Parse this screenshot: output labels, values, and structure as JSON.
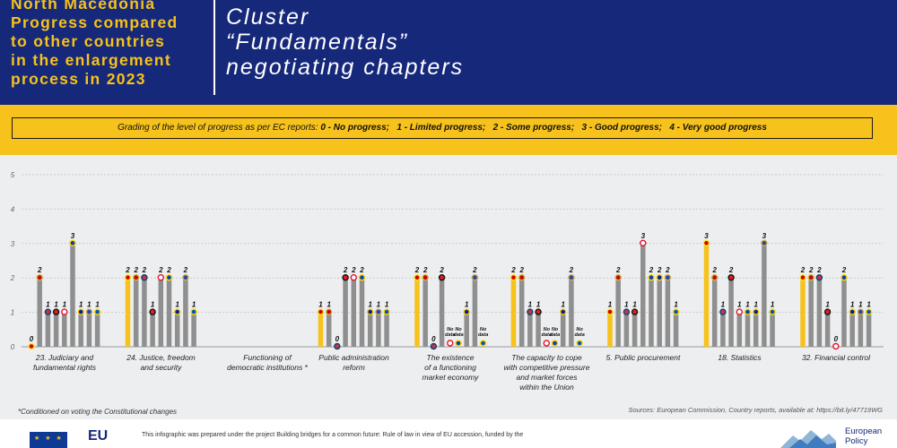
{
  "header": {
    "left_lines": [
      "North Macedonia",
      "Progress compared",
      "to other countries",
      "in the enlargement",
      "process in 2023"
    ],
    "right_lines": [
      "Cluster",
      "“Fundamentals”",
      "negotiating chapters"
    ]
  },
  "grading": {
    "intro": "Grading of the level of progress as per EC reports: ",
    "items": [
      "0 - No progress;",
      "1 - Limited progress;",
      "2 - Some progress;",
      "3 - Good progress;",
      "4 - Very good progress"
    ]
  },
  "footnote": "*Conditioned on voting the Constitutional changes",
  "sources": "Sources: European Commission, Country reports, available at: https://bit.ly/47719WG",
  "footer": {
    "eu_mark": "EU",
    "text": "This infographic was prepared under the project Building bridges for a common future: Rule of law in view of EU accession, funded by the",
    "logo_text_1": "European",
    "logo_text_2": "Policy"
  },
  "colors": {
    "highlight_bar": "#f6c21b",
    "other_bar": "#8f8f8f",
    "header_bg": "#16287a",
    "band": "#f6c21b"
  },
  "chart_data": {
    "type": "bar",
    "ylim": [
      0,
      5
    ],
    "yticks": [
      "0",
      "1",
      "2",
      "3",
      "4",
      "5"
    ],
    "no_data_label": "No\ndata",
    "flags": [
      "north-macedonia-flag",
      "montenegro-flag",
      "serbia-flag",
      "albania-flag",
      "georgia-flag",
      "moldova-flag",
      "bosnia-herzegovina-flag",
      "kosovo-flag",
      "ukraine-flag"
    ],
    "groups": [
      {
        "label": "23. Judiciary and\nfundamental rights",
        "values": [
          0,
          2,
          1,
          1,
          1,
          3,
          1,
          1,
          1
        ]
      },
      {
        "label": "24. Justice, freedom\nand security",
        "values": [
          2,
          2,
          2,
          1,
          2,
          2,
          1,
          2,
          1
        ]
      },
      {
        "label": "Functioning of\ndemocratic institutions *",
        "values": []
      },
      {
        "label": "Public administration\nreform",
        "values": [
          1,
          1,
          0,
          2,
          2,
          2,
          1,
          1,
          1
        ]
      },
      {
        "label": "The existence\nof a functioning\nmarket economy",
        "values": [
          2,
          2,
          0,
          2,
          null,
          null,
          1,
          2,
          null
        ]
      },
      {
        "label": "The capacity to cope\nwith competitive pressure\nand market forces\nwithin the Union",
        "values": [
          2,
          2,
          1,
          1,
          null,
          null,
          1,
          2,
          null
        ]
      },
      {
        "label": "5. Public procurement",
        "values": [
          1,
          2,
          1,
          1,
          3,
          2,
          2,
          2,
          1
        ]
      },
      {
        "label": "18. Statistics",
        "values": [
          3,
          2,
          1,
          2,
          1,
          1,
          1,
          3,
          1
        ]
      },
      {
        "label": "32. Financial control",
        "values": [
          2,
          2,
          2,
          1,
          0,
          2,
          1,
          1,
          1
        ]
      }
    ]
  }
}
